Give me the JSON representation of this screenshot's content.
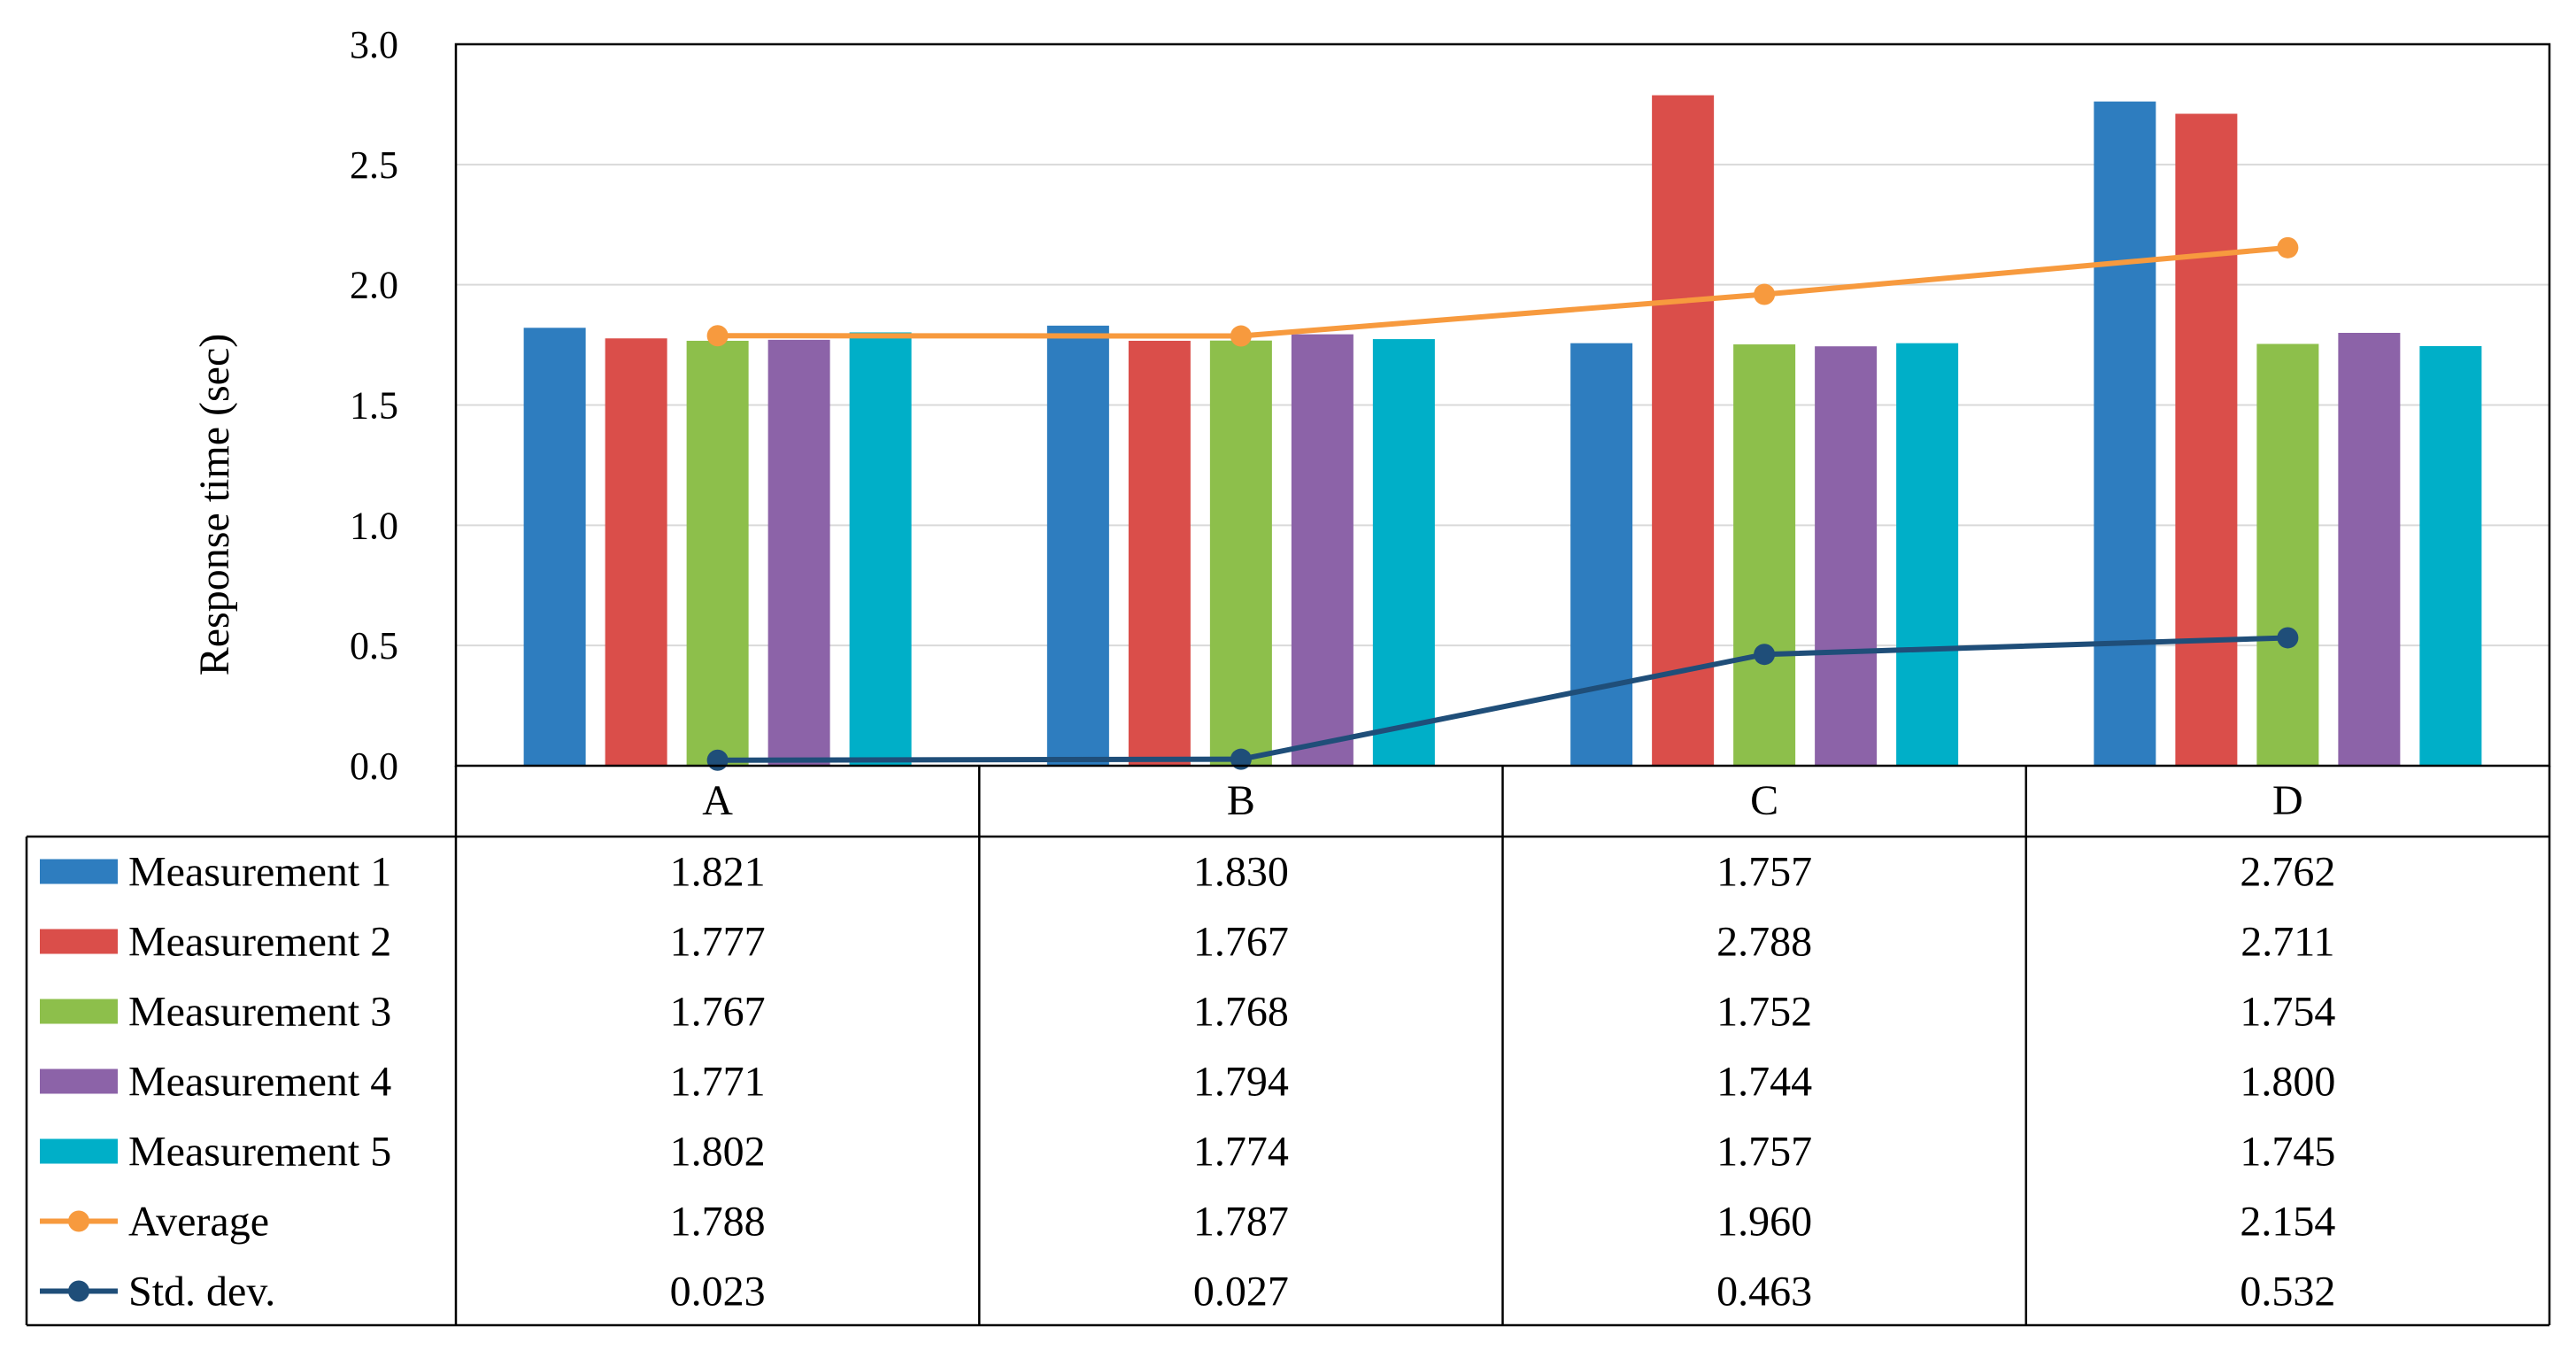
{
  "chart_data": {
    "type": "bar",
    "title": "",
    "xlabel": "",
    "ylabel": "Response time (sec)",
    "ylim": [
      0,
      3.0
    ],
    "yticks": [
      "0.0",
      "0.5",
      "1.0",
      "1.5",
      "2.0",
      "2.5",
      "3.0"
    ],
    "grid": true,
    "legend": "left (inside data table)",
    "categories": [
      "A",
      "B",
      "C",
      "D"
    ],
    "series": [
      {
        "name": "Measurement 1",
        "kind": "bar",
        "color": "#2E7DBF",
        "values": [
          1.821,
          1.83,
          1.757,
          2.762
        ],
        "labels": [
          "1.821",
          "1.830",
          "1.757",
          "2.762"
        ]
      },
      {
        "name": "Measurement 2",
        "kind": "bar",
        "color": "#DA4E4A",
        "values": [
          1.777,
          1.767,
          2.788,
          2.711
        ],
        "labels": [
          "1.777",
          "1.767",
          "2.788",
          "2.711"
        ]
      },
      {
        "name": "Measurement 3",
        "kind": "bar",
        "color": "#8DBF4B",
        "values": [
          1.767,
          1.768,
          1.752,
          1.754
        ],
        "labels": [
          "1.767",
          "1.768",
          "1.752",
          "1.754"
        ]
      },
      {
        "name": "Measurement 4",
        "kind": "bar",
        "color": "#8C63A8",
        "values": [
          1.771,
          1.794,
          1.744,
          1.8
        ],
        "labels": [
          "1.771",
          "1.794",
          "1.744",
          "1.800"
        ]
      },
      {
        "name": "Measurement 5",
        "kind": "bar",
        "color": "#00AFC8",
        "values": [
          1.802,
          1.774,
          1.757,
          1.745
        ],
        "labels": [
          "1.802",
          "1.774",
          "1.757",
          "1.745"
        ]
      },
      {
        "name": "Average",
        "kind": "line",
        "color": "#F79A3E",
        "values": [
          1.788,
          1.787,
          1.96,
          2.154
        ],
        "labels": [
          "1.788",
          "1.787",
          "1.960",
          "2.154"
        ]
      },
      {
        "name": "Std. dev.",
        "kind": "line",
        "color": "#1F4E79",
        "values": [
          0.023,
          0.027,
          0.463,
          0.532
        ],
        "labels": [
          "0.023",
          "0.027",
          "0.463",
          "0.532"
        ]
      }
    ]
  }
}
